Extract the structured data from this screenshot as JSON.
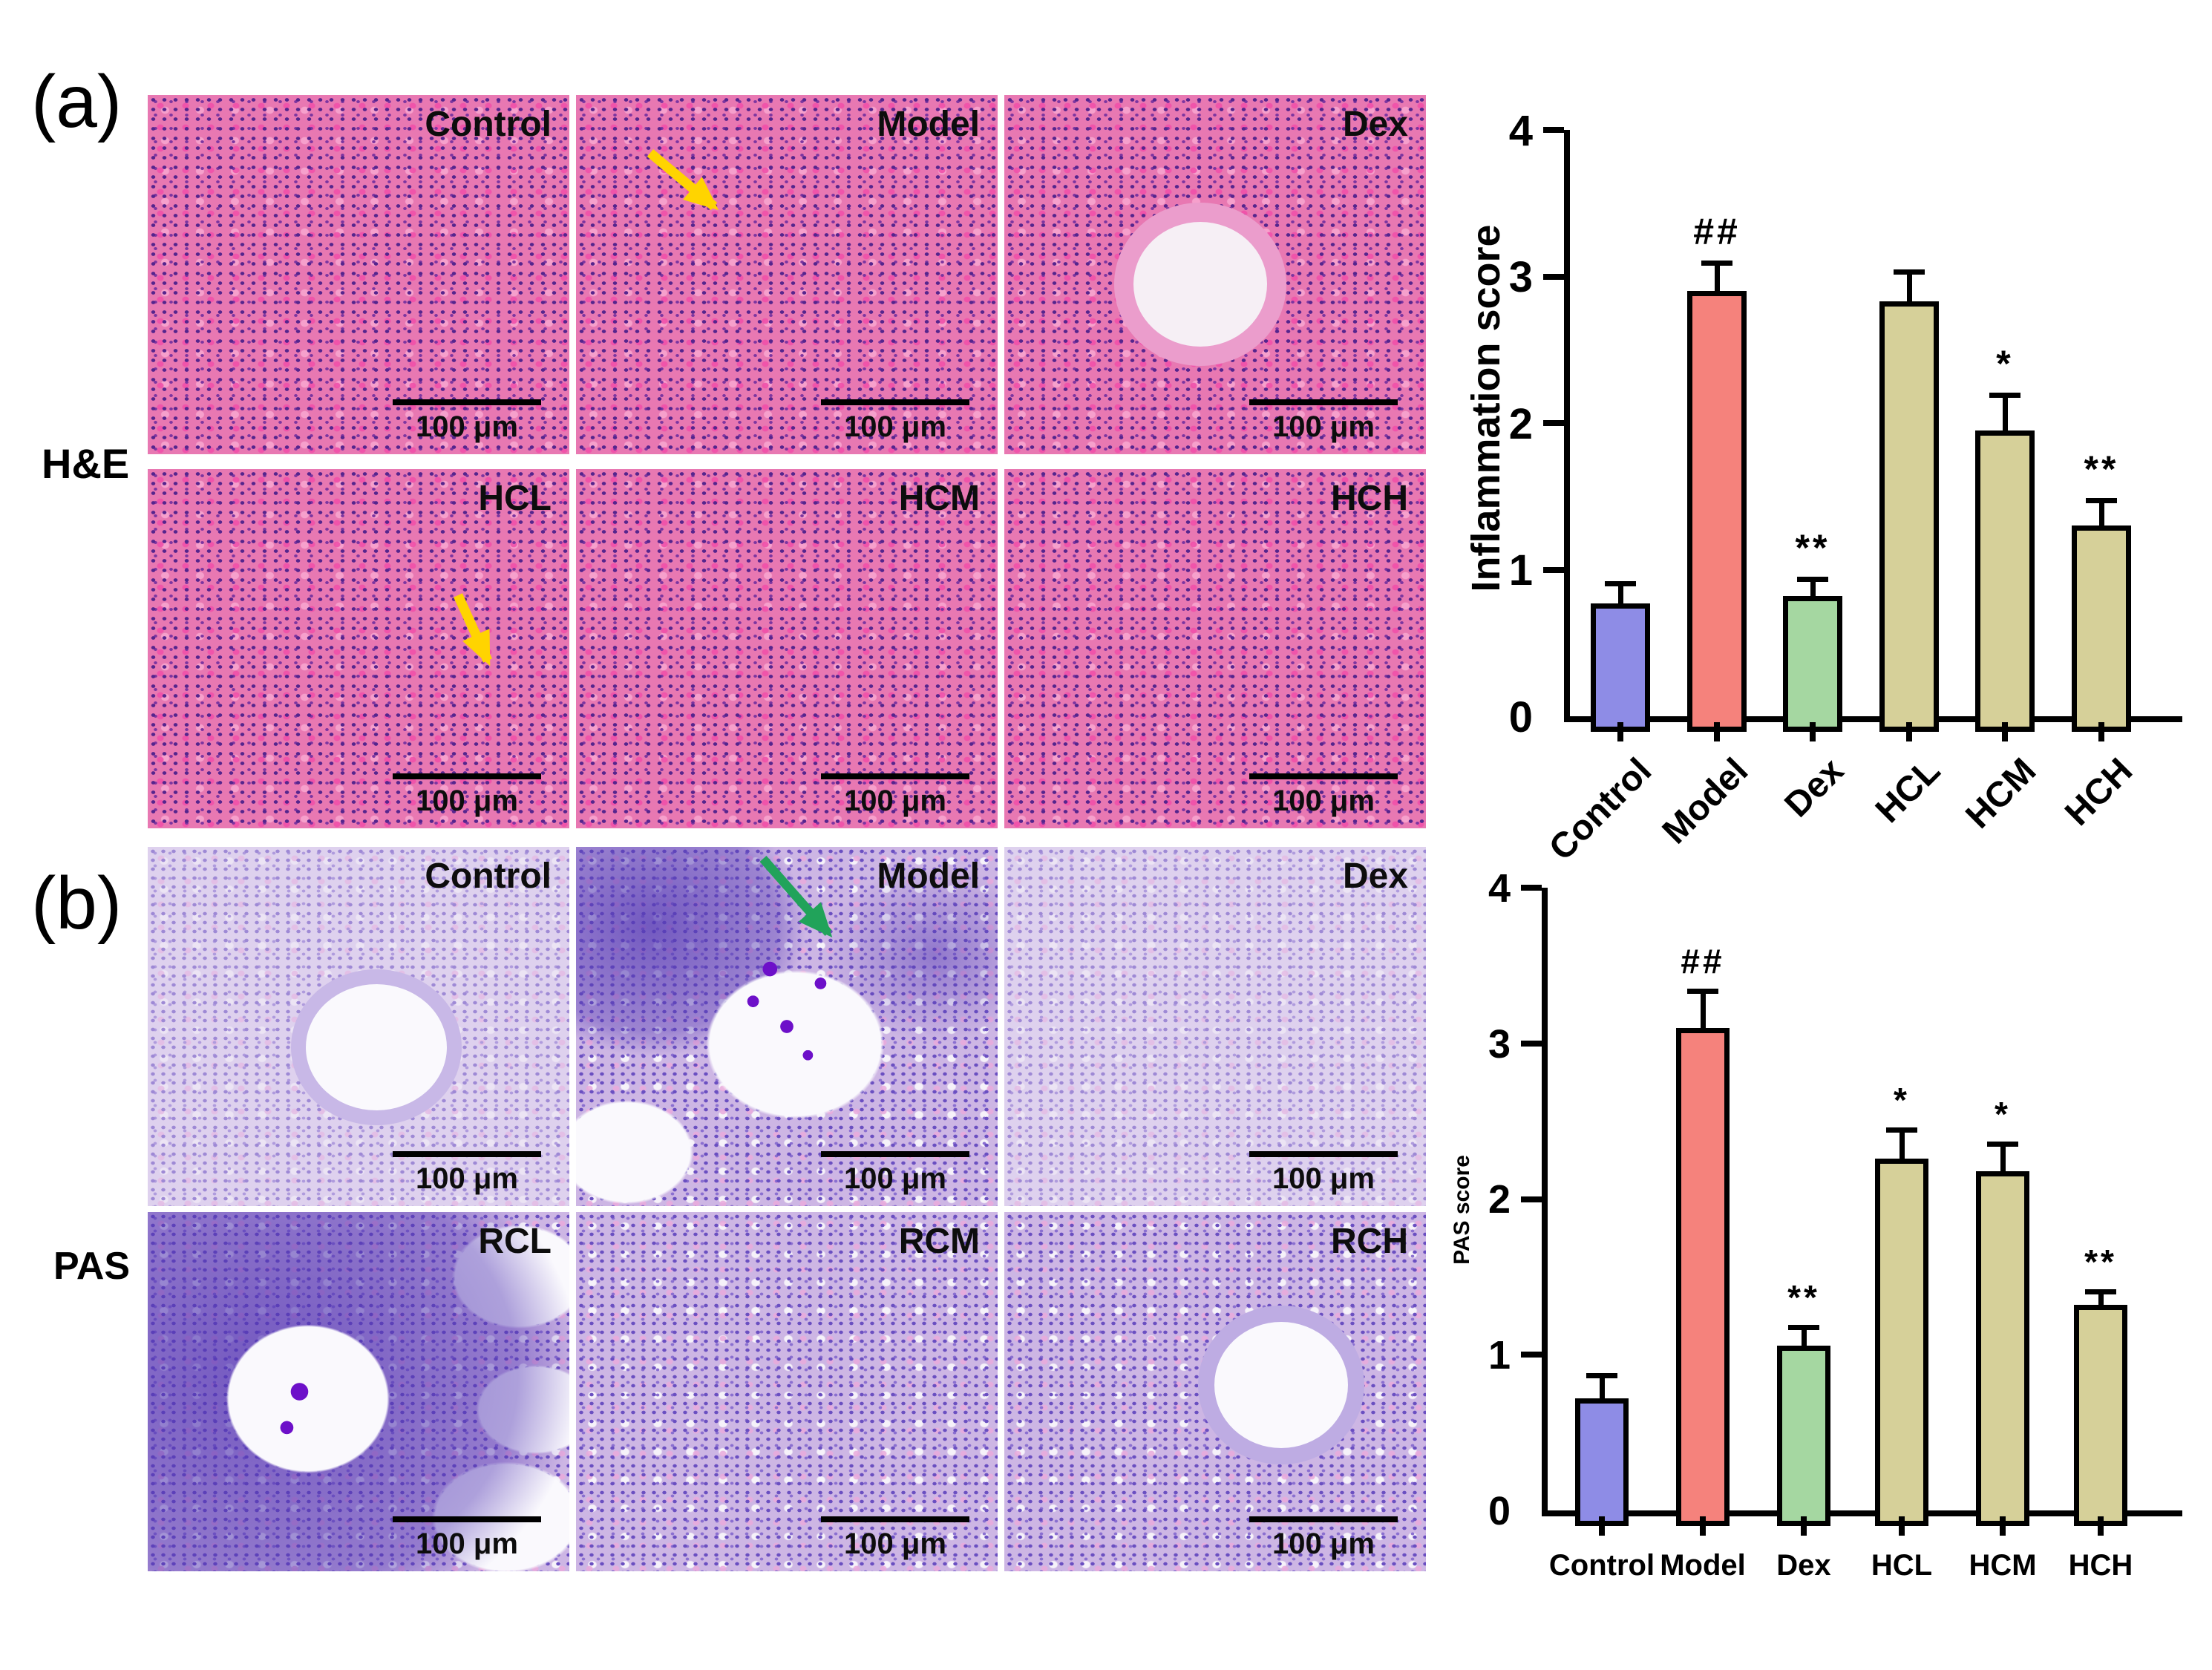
{
  "scale_label": "100 μm",
  "panels": {
    "a": {
      "label": "(a)",
      "stain": "H&E",
      "tiles": [
        {
          "label": "Control",
          "arrow": "none"
        },
        {
          "label": "Model",
          "arrow": "yellow"
        },
        {
          "label": "Dex",
          "arrow": "none"
        },
        {
          "label": "HCL",
          "arrow": "yellow"
        },
        {
          "label": "HCM",
          "arrow": "none"
        },
        {
          "label": "HCH",
          "arrow": "none"
        }
      ]
    },
    "b": {
      "label": "(b)",
      "stain": "PAS",
      "tiles": [
        {
          "label": "Control",
          "arrow": "none"
        },
        {
          "label": "Model",
          "arrow": "green"
        },
        {
          "label": "Dex",
          "arrow": "none"
        },
        {
          "label": "RCL",
          "arrow": "none"
        },
        {
          "label": "RCM",
          "arrow": "none"
        },
        {
          "label": "RCH",
          "arrow": "none"
        }
      ]
    }
  },
  "colors": {
    "bar_control": "#8e8ce6",
    "bar_model": "#f5827c",
    "bar_dex": "#a5d7a1",
    "bar_hc": "#d6d099",
    "axis": "#000000",
    "arrow_yellow": "#ffd400",
    "arrow_green": "#21a35a"
  },
  "chart_data": [
    {
      "type": "bar",
      "name": "inflammation-score",
      "title": "",
      "xlabel": "",
      "ylabel": "Inflammation score",
      "categories": [
        "Control",
        "Model",
        "Dex",
        "HCL",
        "HCM",
        "HCH"
      ],
      "values": [
        0.77,
        2.9,
        0.82,
        2.83,
        1.95,
        1.3
      ],
      "errors": [
        0.15,
        0.21,
        0.13,
        0.22,
        0.26,
        0.19
      ],
      "annotations": [
        "",
        "##",
        "**",
        "",
        "*",
        "**"
      ],
      "bar_colors": [
        "#8e8ce6",
        "#f5827c",
        "#a5d7a1",
        "#d6d099",
        "#d6d099",
        "#d6d099"
      ],
      "ylim": [
        0,
        4
      ],
      "yticks": [
        0,
        1,
        2,
        3,
        4
      ],
      "x_tick_rotation": -45,
      "grid": false,
      "legend": "none"
    },
    {
      "type": "bar",
      "name": "pas-score",
      "title": "",
      "xlabel": "",
      "ylabel": "PAS score",
      "categories": [
        "Control",
        "Model",
        "Dex",
        "HCL",
        "HCM",
        "HCH"
      ],
      "values": [
        0.72,
        3.1,
        1.06,
        2.26,
        2.18,
        1.32
      ],
      "errors": [
        0.16,
        0.25,
        0.13,
        0.2,
        0.19,
        0.1
      ],
      "annotations": [
        "",
        "##",
        "**",
        "*",
        "*",
        "**"
      ],
      "bar_colors": [
        "#8e8ce6",
        "#f5827c",
        "#a5d7a1",
        "#d6d099",
        "#d6d099",
        "#d6d099"
      ],
      "ylim": [
        0,
        4
      ],
      "yticks": [
        0,
        1,
        2,
        3,
        4
      ],
      "x_tick_rotation": 0,
      "grid": false,
      "legend": "none"
    }
  ]
}
